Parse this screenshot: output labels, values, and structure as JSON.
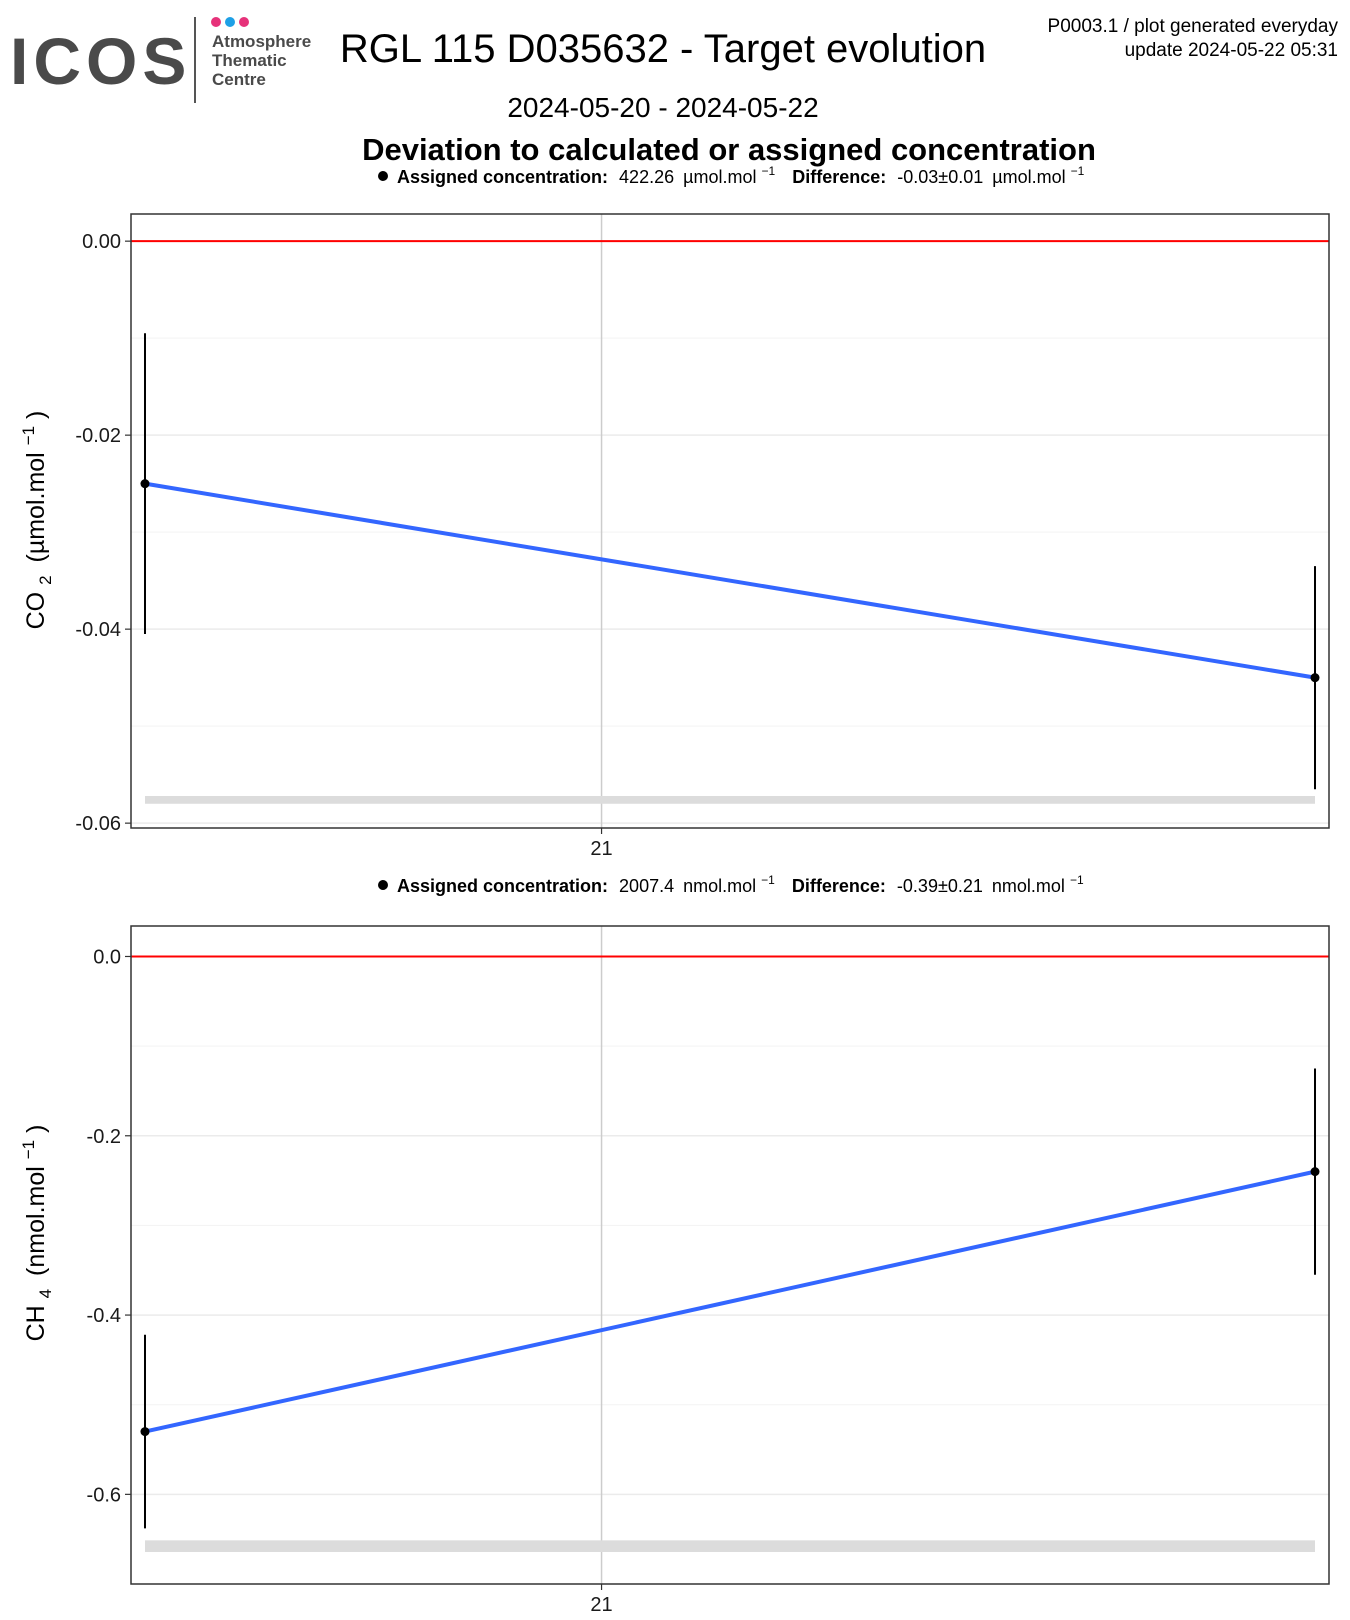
{
  "header": {
    "logo_text": "ICOS",
    "logo_subtitle": [
      "Atmosphere",
      "Thematic",
      "Centre"
    ],
    "title": "RGL 115 D035632 - Target evolution",
    "date_range": "2024-05-20 - 2024-05-22",
    "meta_line1": "P0003.1 / plot generated everyday",
    "meta_line2": "update  2024-05-22 05:31",
    "section_title": "Deviation to calculated or assigned concentration"
  },
  "colors": {
    "reference_line": "#ff0000",
    "trend_line": "#3366ff",
    "points": "#000000",
    "panel_border": "#333333",
    "grid": "#ebebeb",
    "logo_text": "#4a4a4a",
    "dot_pink": "#e6327a",
    "dot_blue": "#1ea0e6"
  },
  "chart_data": [
    {
      "type": "scatter",
      "legend": {
        "assigned_label": "Assigned concentration:",
        "assigned_value": "422.26",
        "unit": "µmol.mol",
        "unit_exp": "−1",
        "difference_label": "Difference:",
        "difference_value": "-0.03±0.01"
      },
      "ylabel": {
        "species": "CO",
        "sub": "2",
        "unit": "(µmol.mol",
        "exp": "−1",
        "close": ")"
      },
      "ylim": [
        -0.0605,
        0.0028
      ],
      "yticks": [
        0.0,
        -0.02,
        -0.04,
        -0.06
      ],
      "ytick_labels": [
        "0.00",
        "-0.02",
        "-0.04",
        "-0.06"
      ],
      "xlim": [
        "2024-05-20T04:57",
        "2024-05-22T05:27"
      ],
      "xticks": [
        "2024-05-21T00:00"
      ],
      "xtick_labels": [
        "21"
      ],
      "reference_value": 0.0,
      "points": [
        {
          "x": "2024-05-20T05:31",
          "y": -0.025,
          "err": 0.0155
        },
        {
          "x": "2024-05-22T04:53",
          "y": -0.045,
          "err": 0.0115
        }
      ],
      "band": [
        -0.0572,
        -0.058
      ]
    },
    {
      "type": "scatter",
      "legend": {
        "assigned_label": "Assigned concentration:",
        "assigned_value": "2007.4",
        "unit": "nmol.mol",
        "unit_exp": "−1",
        "difference_label": "Difference:",
        "difference_value": "-0.39±0.21"
      },
      "ylabel": {
        "species": "CH",
        "sub": "4",
        "unit": "(nmol.mol",
        "exp": "−1",
        "close": ")"
      },
      "ylim": [
        -0.7,
        0.034
      ],
      "yticks": [
        0.0,
        -0.2,
        -0.4,
        -0.6
      ],
      "ytick_labels": [
        "0.0",
        "-0.2",
        "-0.4",
        "-0.6"
      ],
      "xlim": [
        "2024-05-20T04:57",
        "2024-05-22T05:27"
      ],
      "xticks": [
        "2024-05-21T00:00"
      ],
      "xtick_labels": [
        "21"
      ],
      "reference_value": 0.0,
      "points": [
        {
          "x": "2024-05-20T05:31",
          "y": -0.53,
          "err": 0.108
        },
        {
          "x": "2024-05-22T04:53",
          "y": -0.24,
          "err": 0.115
        }
      ],
      "band": [
        -0.6513,
        -0.6643
      ]
    }
  ]
}
